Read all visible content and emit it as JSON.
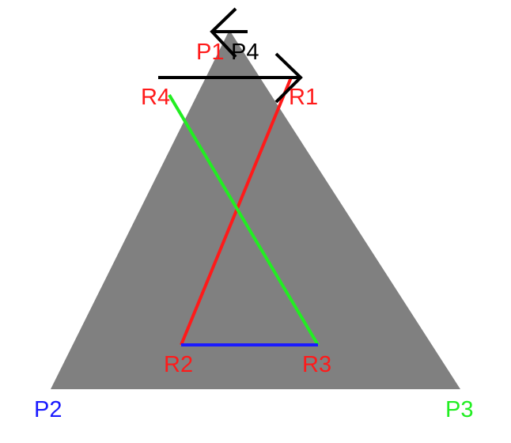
{
  "diagram": {
    "colors": {
      "triangle_fill": "#808080",
      "red": "#ff1a1a",
      "green": "#22ee22",
      "blue": "#1a1aff",
      "black": "#000000"
    },
    "points": {
      "P1": {
        "label": "P1",
        "color": "#ff1a1a"
      },
      "P2": {
        "label": "P2",
        "color": "#1a1aff"
      },
      "P3": {
        "label": "P3",
        "color": "#22ee22"
      },
      "P4": {
        "label": "P4",
        "color": "#000000"
      },
      "R1": {
        "label": "R1",
        "color": "#ff1a1a"
      },
      "R2": {
        "label": "R2",
        "color": "#ff1a1a"
      },
      "R3": {
        "label": "R3",
        "color": "#ff1a1a"
      },
      "R4": {
        "label": "R4",
        "color": "#ff1a1a"
      }
    },
    "segments": [
      {
        "name": "R1-R2",
        "from": "R1",
        "to": "R2",
        "color": "#ff1a1a"
      },
      {
        "name": "R2-R3",
        "from": "R2",
        "to": "R3",
        "color": "#1a1aff"
      },
      {
        "name": "R3-R4",
        "from": "R3",
        "to": "R4",
        "color": "#22ee22"
      },
      {
        "name": "R4-R1",
        "from": "R4",
        "to": "R1",
        "color": "#000000",
        "arrow": "end"
      }
    ],
    "arrows": [
      {
        "name": "P4-to-P1",
        "direction": "left",
        "color": "#000000"
      }
    ]
  }
}
